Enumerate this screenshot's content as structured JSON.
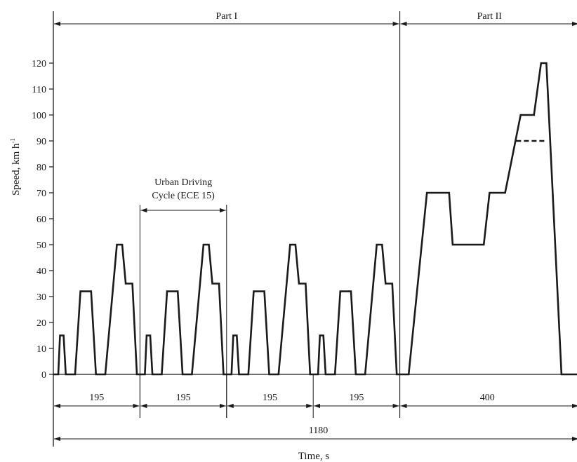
{
  "chart_data": {
    "type": "line",
    "title": "",
    "xlabel": "Time, s",
    "ylabel": "Speed, km h",
    "ylabel_superscript": "-1",
    "ylim": [
      0,
      120
    ],
    "yticks": [
      0,
      10,
      20,
      30,
      40,
      50,
      60,
      70,
      80,
      90,
      100,
      110,
      120
    ],
    "xlim": [
      0,
      1220
    ],
    "grid": false,
    "series": [
      {
        "values": [
          {
            "x": 0,
            "y": 0
          },
          {
            "x": 11,
            "y": 0
          },
          {
            "x": 15,
            "y": 15
          },
          {
            "x": 23,
            "y": 15
          },
          {
            "x": 28,
            "y": 0
          },
          {
            "x": 49,
            "y": 0
          },
          {
            "x": 61,
            "y": 32
          },
          {
            "x": 85,
            "y": 32
          },
          {
            "x": 96,
            "y": 0
          },
          {
            "x": 117,
            "y": 0
          },
          {
            "x": 143,
            "y": 50
          },
          {
            "x": 155,
            "y": 50
          },
          {
            "x": 163,
            "y": 35
          },
          {
            "x": 178,
            "y": 35
          },
          {
            "x": 188,
            "y": 0
          },
          {
            "x": 195,
            "y": 0
          },
          {
            "x": 206,
            "y": 0
          },
          {
            "x": 210,
            "y": 15
          },
          {
            "x": 218,
            "y": 15
          },
          {
            "x": 223,
            "y": 0
          },
          {
            "x": 244,
            "y": 0
          },
          {
            "x": 256,
            "y": 32
          },
          {
            "x": 280,
            "y": 32
          },
          {
            "x": 291,
            "y": 0
          },
          {
            "x": 312,
            "y": 0
          },
          {
            "x": 338,
            "y": 50
          },
          {
            "x": 350,
            "y": 50
          },
          {
            "x": 358,
            "y": 35
          },
          {
            "x": 373,
            "y": 35
          },
          {
            "x": 383,
            "y": 0
          },
          {
            "x": 390,
            "y": 0
          },
          {
            "x": 401,
            "y": 0
          },
          {
            "x": 405,
            "y": 15
          },
          {
            "x": 413,
            "y": 15
          },
          {
            "x": 418,
            "y": 0
          },
          {
            "x": 439,
            "y": 0
          },
          {
            "x": 451,
            "y": 32
          },
          {
            "x": 475,
            "y": 32
          },
          {
            "x": 486,
            "y": 0
          },
          {
            "x": 507,
            "y": 0
          },
          {
            "x": 533,
            "y": 50
          },
          {
            "x": 545,
            "y": 50
          },
          {
            "x": 553,
            "y": 35
          },
          {
            "x": 568,
            "y": 35
          },
          {
            "x": 578,
            "y": 0
          },
          {
            "x": 585,
            "y": 0
          },
          {
            "x": 596,
            "y": 0
          },
          {
            "x": 600,
            "y": 15
          },
          {
            "x": 608,
            "y": 15
          },
          {
            "x": 613,
            "y": 0
          },
          {
            "x": 634,
            "y": 0
          },
          {
            "x": 646,
            "y": 32
          },
          {
            "x": 670,
            "y": 32
          },
          {
            "x": 681,
            "y": 0
          },
          {
            "x": 702,
            "y": 0
          },
          {
            "x": 728,
            "y": 50
          },
          {
            "x": 740,
            "y": 50
          },
          {
            "x": 748,
            "y": 35
          },
          {
            "x": 763,
            "y": 35
          },
          {
            "x": 773,
            "y": 0
          },
          {
            "x": 780,
            "y": 0
          },
          {
            "x": 800,
            "y": 0
          },
          {
            "x": 841,
            "y": 70
          },
          {
            "x": 891,
            "y": 70
          },
          {
            "x": 899,
            "y": 50
          },
          {
            "x": 969,
            "y": 50
          },
          {
            "x": 982,
            "y": 70
          },
          {
            "x": 1017,
            "y": 70
          },
          {
            "x": 1052,
            "y": 100
          },
          {
            "x": 1082,
            "y": 100
          },
          {
            "x": 1098,
            "y": 120
          },
          {
            "x": 1110,
            "y": 120
          },
          {
            "x": 1144,
            "y": 0
          },
          {
            "x": 1180,
            "y": 0
          }
        ]
      }
    ],
    "variant_dashed": [
      {
        "x": 1042,
        "y": 90
      },
      {
        "x": 1107,
        "y": 90
      }
    ],
    "parts": [
      {
        "label": "Part I",
        "x_start": 0,
        "x_end": 780
      },
      {
        "label": "Part II",
        "x_start": 780,
        "x_end": 1180
      }
    ],
    "urban_cycle_label_line1": "Urban Driving",
    "urban_cycle_label_line2": "Cycle (ECE 15)",
    "urban_cycle_span": [
      195,
      390
    ],
    "segments": [
      {
        "label": "195",
        "x_start": 0,
        "x_end": 195
      },
      {
        "label": "195",
        "x_start": 195,
        "x_end": 390
      },
      {
        "label": "195",
        "x_start": 390,
        "x_end": 585
      },
      {
        "label": "195",
        "x_start": 585,
        "x_end": 780
      },
      {
        "label": "400",
        "x_start": 780,
        "x_end": 1180
      }
    ],
    "total": {
      "label": "1180",
      "x_start": 0,
      "x_end": 1180
    }
  }
}
